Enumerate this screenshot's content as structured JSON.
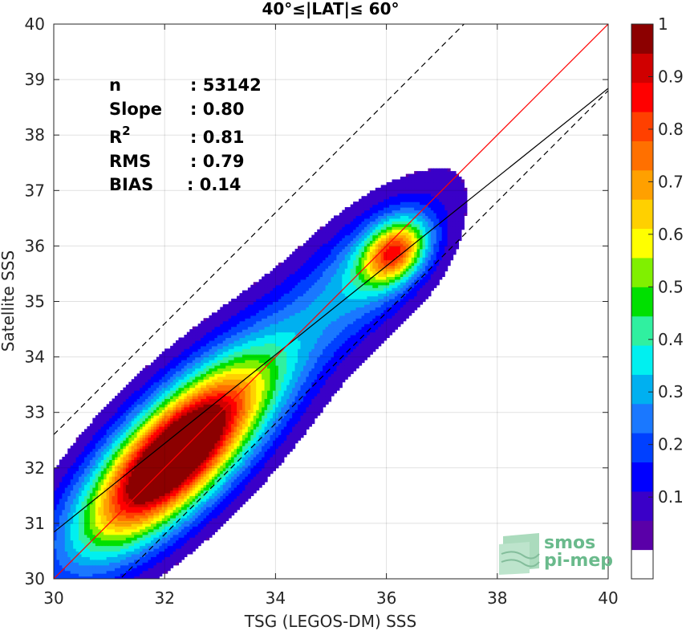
{
  "chart_data": {
    "type": "heatmap",
    "title": "40°≤|LAT|≤ 60°",
    "xlabel": "TSG (LEGOS-DM) SSS",
    "ylabel": "Satellite SSS",
    "xlim": [
      30,
      40
    ],
    "ylim": [
      30,
      40
    ],
    "xticks": [
      30,
      32,
      34,
      36,
      38,
      40
    ],
    "yticks": [
      30,
      31,
      32,
      33,
      34,
      35,
      36,
      37,
      38,
      39,
      40
    ],
    "grid": true,
    "stats": [
      {
        "label": "n",
        "value": ": 53142"
      },
      {
        "label": "Slope",
        "value": ": 0.80"
      },
      {
        "label": "R",
        "sup": "2",
        "value": ": 0.81"
      },
      {
        "label": "RMS",
        "value": ": 0.79"
      },
      {
        "label": "BIAS",
        "value": ": 0.14"
      }
    ],
    "reference_lines": {
      "one_to_one": {
        "slope": 1,
        "intercept": 0,
        "color": "#ff0000",
        "style": "solid"
      },
      "fit": {
        "slope": 0.8,
        "intercept": 6.84,
        "color": "#000000",
        "style": "solid"
      },
      "upper_bound": {
        "slope": 1,
        "intercept": 2.6,
        "color": "#000000",
        "style": "dashed"
      },
      "lower_bound": {
        "slope": 1,
        "intercept": -1.2,
        "color": "#000000",
        "style": "dashed"
      }
    },
    "density_clusters": [
      {
        "center": [
          32.15,
          32.2
        ],
        "axis_sigma": 1.35,
        "perp_sigma": 0.55,
        "peak": 1.0
      },
      {
        "center": [
          36.15,
          35.9
        ],
        "axis_sigma": 0.45,
        "perp_sigma": 0.32,
        "peak": 0.6
      },
      {
        "center": [
          32.3,
          32.35
        ],
        "axis_sigma": 2.4,
        "perp_sigma": 0.75,
        "peak": 0.22
      },
      {
        "center": [
          34.5,
          34.5
        ],
        "axis_sigma": 2.6,
        "perp_sigma": 0.6,
        "peak": 0.14
      },
      {
        "center": [
          35.8,
          35.6
        ],
        "axis_sigma": 0.9,
        "perp_sigma": 0.55,
        "peak": 0.18
      }
    ],
    "colorbar": {
      "range": [
        0,
        1
      ],
      "ticks": [
        "0.1",
        "0.2",
        "0.3",
        "0.4",
        "0.5",
        "0.6",
        "0.7",
        "0.8",
        "0.9",
        "1"
      ],
      "colors": [
        "#ffffff",
        "#5a00a8",
        "#3a00c8",
        "#0000ff",
        "#0040ff",
        "#1a78ff",
        "#00b0f0",
        "#00f0f0",
        "#30f0a0",
        "#00e000",
        "#80f000",
        "#ffff00",
        "#ffd000",
        "#ffa000",
        "#ff7000",
        "#ff4000",
        "#ff0000",
        "#d00000",
        "#8c0000"
      ]
    },
    "watermark": {
      "line1": "smos",
      "line2": "pi-mep",
      "color": "#6aba8c"
    }
  }
}
